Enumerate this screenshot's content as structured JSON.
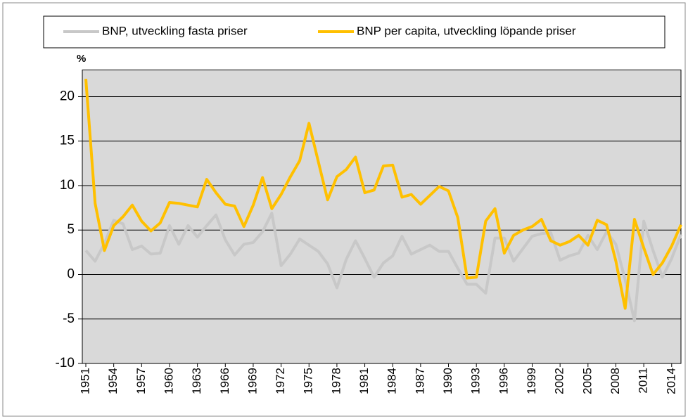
{
  "chart_data": {
    "type": "line",
    "y_label": "%",
    "x": [
      1951,
      1952,
      1953,
      1954,
      1955,
      1956,
      1957,
      1958,
      1959,
      1960,
      1961,
      1962,
      1963,
      1964,
      1965,
      1966,
      1967,
      1968,
      1969,
      1970,
      1971,
      1972,
      1973,
      1974,
      1975,
      1976,
      1977,
      1978,
      1979,
      1980,
      1981,
      1982,
      1983,
      1984,
      1985,
      1986,
      1987,
      1988,
      1989,
      1990,
      1991,
      1992,
      1993,
      1994,
      1995,
      1996,
      1997,
      1998,
      1999,
      2000,
      2001,
      2002,
      2003,
      2004,
      2005,
      2006,
      2007,
      2008,
      2009,
      2010,
      2011,
      2012,
      2013,
      2014,
      2015
    ],
    "xlim": [
      1951,
      2015
    ],
    "xticks": [
      1951,
      1954,
      1957,
      1960,
      1963,
      1966,
      1969,
      1972,
      1975,
      1978,
      1981,
      1984,
      1987,
      1990,
      1993,
      1996,
      1999,
      2002,
      2005,
      2008,
      2011,
      2014
    ],
    "ylim": [
      -10,
      23
    ],
    "yticks": [
      -10,
      -5,
      0,
      5,
      10,
      15,
      20
    ],
    "grid": true,
    "legend": "top",
    "background": "#d9d9d9",
    "series": [
      {
        "name": "BNP, utveckling fasta priser",
        "color": "#c8c8c8",
        "values": [
          2.7,
          1.5,
          3.5,
          6.1,
          5.7,
          2.8,
          3.2,
          2.3,
          2.4,
          5.5,
          3.4,
          5.5,
          4.2,
          5.5,
          6.7,
          3.9,
          2.2,
          3.4,
          3.6,
          4.8,
          6.9,
          1.0,
          2.3,
          4.0,
          3.3,
          2.6,
          1.2,
          -1.5,
          1.7,
          3.8,
          1.8,
          -0.3,
          1.3,
          2.1,
          4.3,
          2.3,
          2.8,
          3.3,
          2.6,
          2.6,
          0.7,
          -1.1,
          -1.1,
          -2.1,
          4.1,
          4.1,
          1.5,
          2.9,
          4.3,
          4.6,
          4.7,
          1.6,
          2.1,
          2.4,
          4.4,
          2.8,
          4.8,
          3.4,
          -0.6,
          -5.2,
          6.0,
          2.7,
          -0.3,
          1.8,
          4.5
        ]
      },
      {
        "name": "BNP per capita, utveckling löpande priser",
        "color": "#ffc000",
        "values": [
          22.0,
          8.0,
          2.7,
          5.5,
          6.5,
          7.8,
          6.0,
          4.9,
          5.8,
          8.1,
          8.0,
          7.8,
          7.6,
          10.7,
          9.2,
          7.9,
          7.7,
          5.4,
          7.8,
          10.9,
          7.4,
          9.0,
          11.0,
          12.8,
          17.0,
          12.7,
          8.4,
          11.0,
          11.8,
          13.2,
          9.2,
          9.5,
          12.2,
          12.3,
          8.7,
          9.0,
          7.9,
          8.9,
          9.9,
          9.4,
          6.4,
          -0.4,
          -0.3,
          6.0,
          7.4,
          2.4,
          4.4,
          5.0,
          5.4,
          6.2,
          3.8,
          3.3,
          3.7,
          4.4,
          3.3,
          6.1,
          5.6,
          1.5,
          -3.8,
          6.2,
          3.0,
          0.0,
          1.3,
          3.2,
          5.6
        ]
      }
    ]
  }
}
